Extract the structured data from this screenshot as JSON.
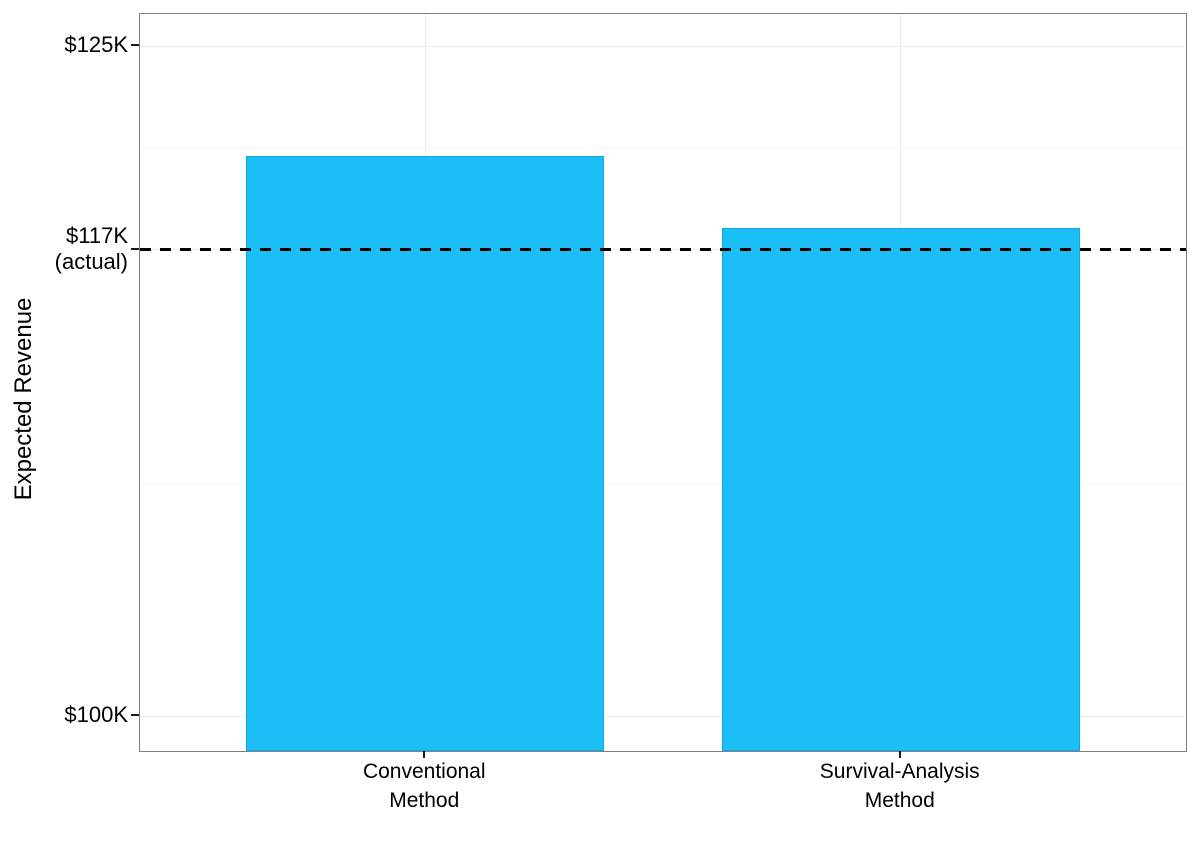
{
  "chart_data": {
    "type": "bar",
    "title": "",
    "xlabel": "",
    "ylabel": "Expected Revenue",
    "categories": [
      "Conventional\nMethod",
      "Survival-Analysis\nMethod"
    ],
    "series": [
      {
        "name": "Expected Revenue",
        "values": [
          120.9,
          118.2
        ]
      }
    ],
    "ylim": [
      98.7,
      126.2
    ],
    "yticks": [
      {
        "value": 125,
        "label": "$125K"
      },
      {
        "value": 117.4,
        "label": "$117K\n(actual)"
      },
      {
        "value": 100,
        "label": "$100K"
      }
    ],
    "minor_gridlines": [
      121.2,
      108.7
    ],
    "reference_line": {
      "value": 117.4,
      "style": "dashed",
      "color": "#000000"
    },
    "grid": "on",
    "legend": "none",
    "colors": {
      "bar_fill": "#1CBEF7",
      "bar_border": "#12A8E2",
      "grid_major": "#EBEBEB",
      "grid_minor": "#F7F7F7",
      "panel_border": "#7F7F7F",
      "tick": "#1A1A1A",
      "text": "#000000"
    }
  }
}
